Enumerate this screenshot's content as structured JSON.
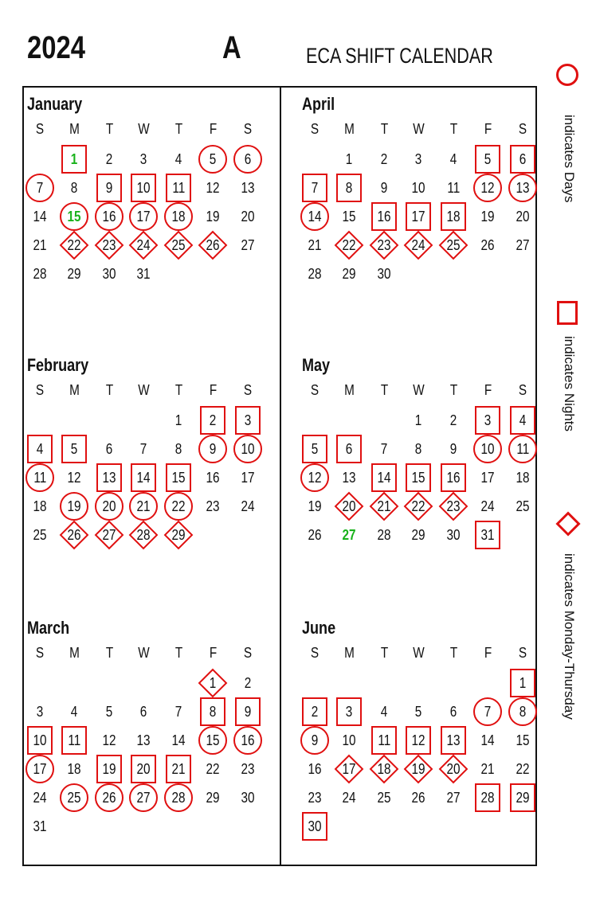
{
  "header": {
    "year": "2024",
    "crew": "A",
    "title": "ECA SHIFT CALENDAR"
  },
  "weekday_labels": [
    "S",
    "M",
    "T",
    "W",
    "T",
    "F",
    "S"
  ],
  "legend": {
    "day": "indicates Days",
    "night": "indicates Nights",
    "mt": "indicates Monday-Thursday"
  },
  "colors": {
    "mark": "#e01010",
    "holiday": "#19b21b"
  },
  "months": [
    {
      "name": "January",
      "start_dow": 1,
      "days": 31,
      "day_shift": [
        5,
        6,
        7,
        15,
        16,
        17,
        18
      ],
      "night_shift": [
        1,
        9,
        10,
        11
      ],
      "mon_thu": [
        22,
        23,
        24,
        25,
        26
      ],
      "holidays": [
        1,
        15
      ]
    },
    {
      "name": "April",
      "start_dow": 1,
      "days": 30,
      "day_shift": [
        12,
        13,
        14
      ],
      "night_shift": [
        5,
        6,
        7,
        8,
        16,
        17,
        18
      ],
      "mon_thu": [
        22,
        23,
        24,
        25
      ],
      "holidays": []
    },
    {
      "name": "February",
      "start_dow": 4,
      "days": 29,
      "day_shift": [
        9,
        10,
        11,
        19,
        20,
        21,
        22
      ],
      "night_shift": [
        2,
        3,
        4,
        5,
        13,
        14,
        15
      ],
      "mon_thu": [
        26,
        27,
        28,
        29
      ],
      "holidays": []
    },
    {
      "name": "May",
      "start_dow": 3,
      "days": 31,
      "day_shift": [
        10,
        11,
        12
      ],
      "night_shift": [
        3,
        4,
        5,
        6,
        14,
        15,
        16,
        31
      ],
      "mon_thu": [
        20,
        21,
        22,
        23
      ],
      "holidays": [
        27
      ]
    },
    {
      "name": "March",
      "start_dow": 5,
      "days": 31,
      "day_shift": [
        15,
        16,
        17,
        25,
        26,
        27,
        28
      ],
      "night_shift": [
        8,
        9,
        10,
        11,
        19,
        20,
        21
      ],
      "mon_thu": [
        1
      ],
      "holidays": []
    },
    {
      "name": "June",
      "start_dow": 6,
      "days": 30,
      "day_shift": [
        7,
        8,
        9
      ],
      "night_shift": [
        1,
        2,
        3,
        11,
        12,
        13,
        28,
        29,
        30
      ],
      "mon_thu": [
        17,
        18,
        19,
        20
      ],
      "holidays": []
    }
  ]
}
